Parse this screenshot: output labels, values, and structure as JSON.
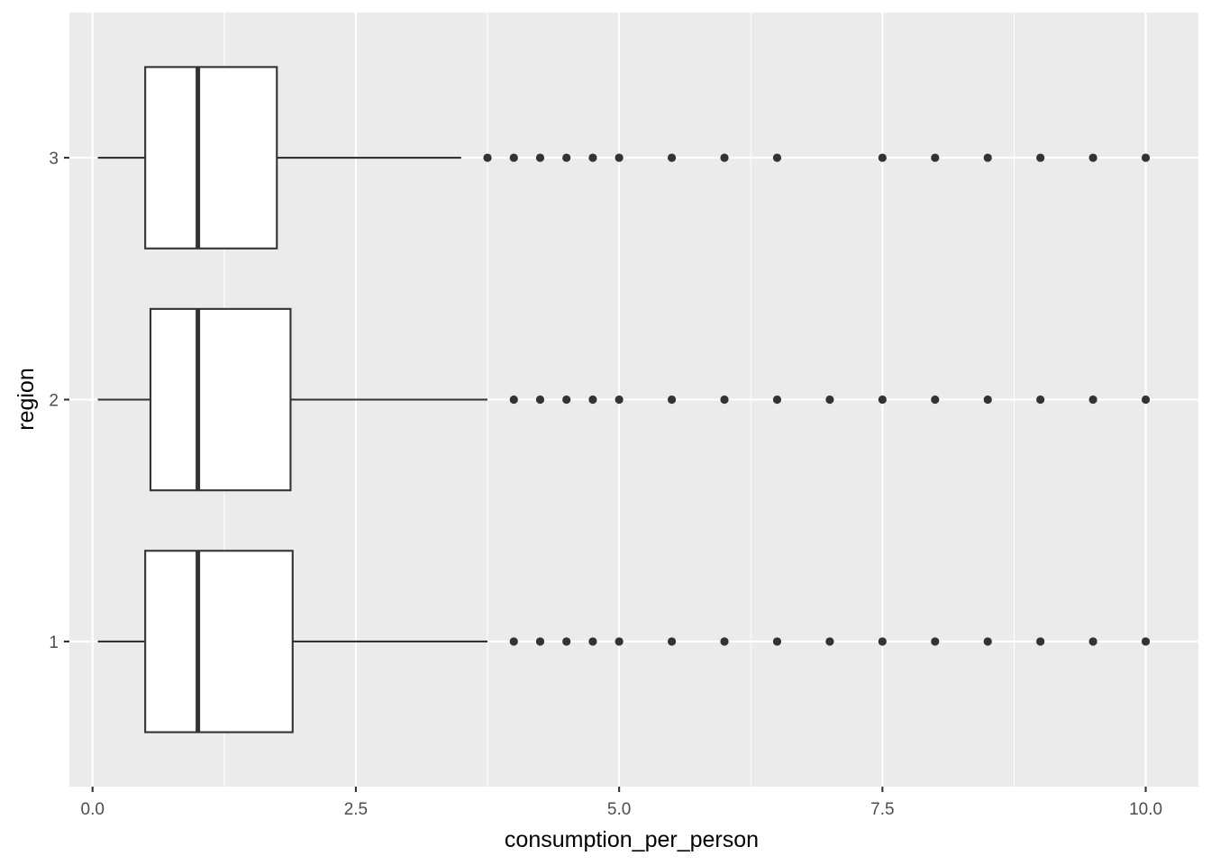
{
  "chart_data": {
    "type": "boxplot",
    "orientation": "horizontal",
    "xlabel": "consumption_per_person",
    "ylabel": "region",
    "xlim": [
      -0.22,
      10.5
    ],
    "ylim": [
      0.4,
      3.6
    ],
    "x_ticks": [
      0.0,
      2.5,
      5.0,
      7.5,
      10.0
    ],
    "x_tick_labels": [
      "0.0",
      "2.5",
      "5.0",
      "7.5",
      "10.0"
    ],
    "y_ticks": [
      1,
      2,
      3
    ],
    "y_tick_labels": [
      "1",
      "2",
      "3"
    ],
    "grid": true,
    "legend": "none",
    "colors": {
      "panel": "#EBEBEB",
      "grid": "#FFFFFF",
      "box_fill": "#FFFFFF",
      "box_line": "#333333",
      "outlier": "#333333",
      "tick_label": "#4D4D4D"
    },
    "boxes": [
      {
        "category": "1",
        "whisker_low": 0.05,
        "q1": 0.5,
        "median": 1.0,
        "q3": 1.9,
        "whisker_high": 3.75,
        "outliers": [
          4.0,
          4.25,
          4.5,
          4.75,
          5.0,
          5.5,
          6.0,
          6.5,
          7.0,
          7.5,
          8.0,
          8.5,
          9.0,
          9.5,
          10.0
        ]
      },
      {
        "category": "2",
        "whisker_low": 0.05,
        "q1": 0.55,
        "median": 1.0,
        "q3": 1.88,
        "whisker_high": 3.75,
        "outliers": [
          4.0,
          4.25,
          4.5,
          4.75,
          5.0,
          5.5,
          6.0,
          6.5,
          7.0,
          7.5,
          8.0,
          8.5,
          9.0,
          9.5,
          10.0
        ]
      },
      {
        "category": "3",
        "whisker_low": 0.05,
        "q1": 0.5,
        "median": 1.0,
        "q3": 1.75,
        "whisker_high": 3.5,
        "outliers": [
          3.75,
          4.0,
          4.25,
          4.5,
          4.75,
          5.0,
          5.5,
          6.0,
          6.5,
          7.5,
          8.0,
          8.5,
          9.0,
          9.5,
          10.0
        ]
      }
    ]
  }
}
